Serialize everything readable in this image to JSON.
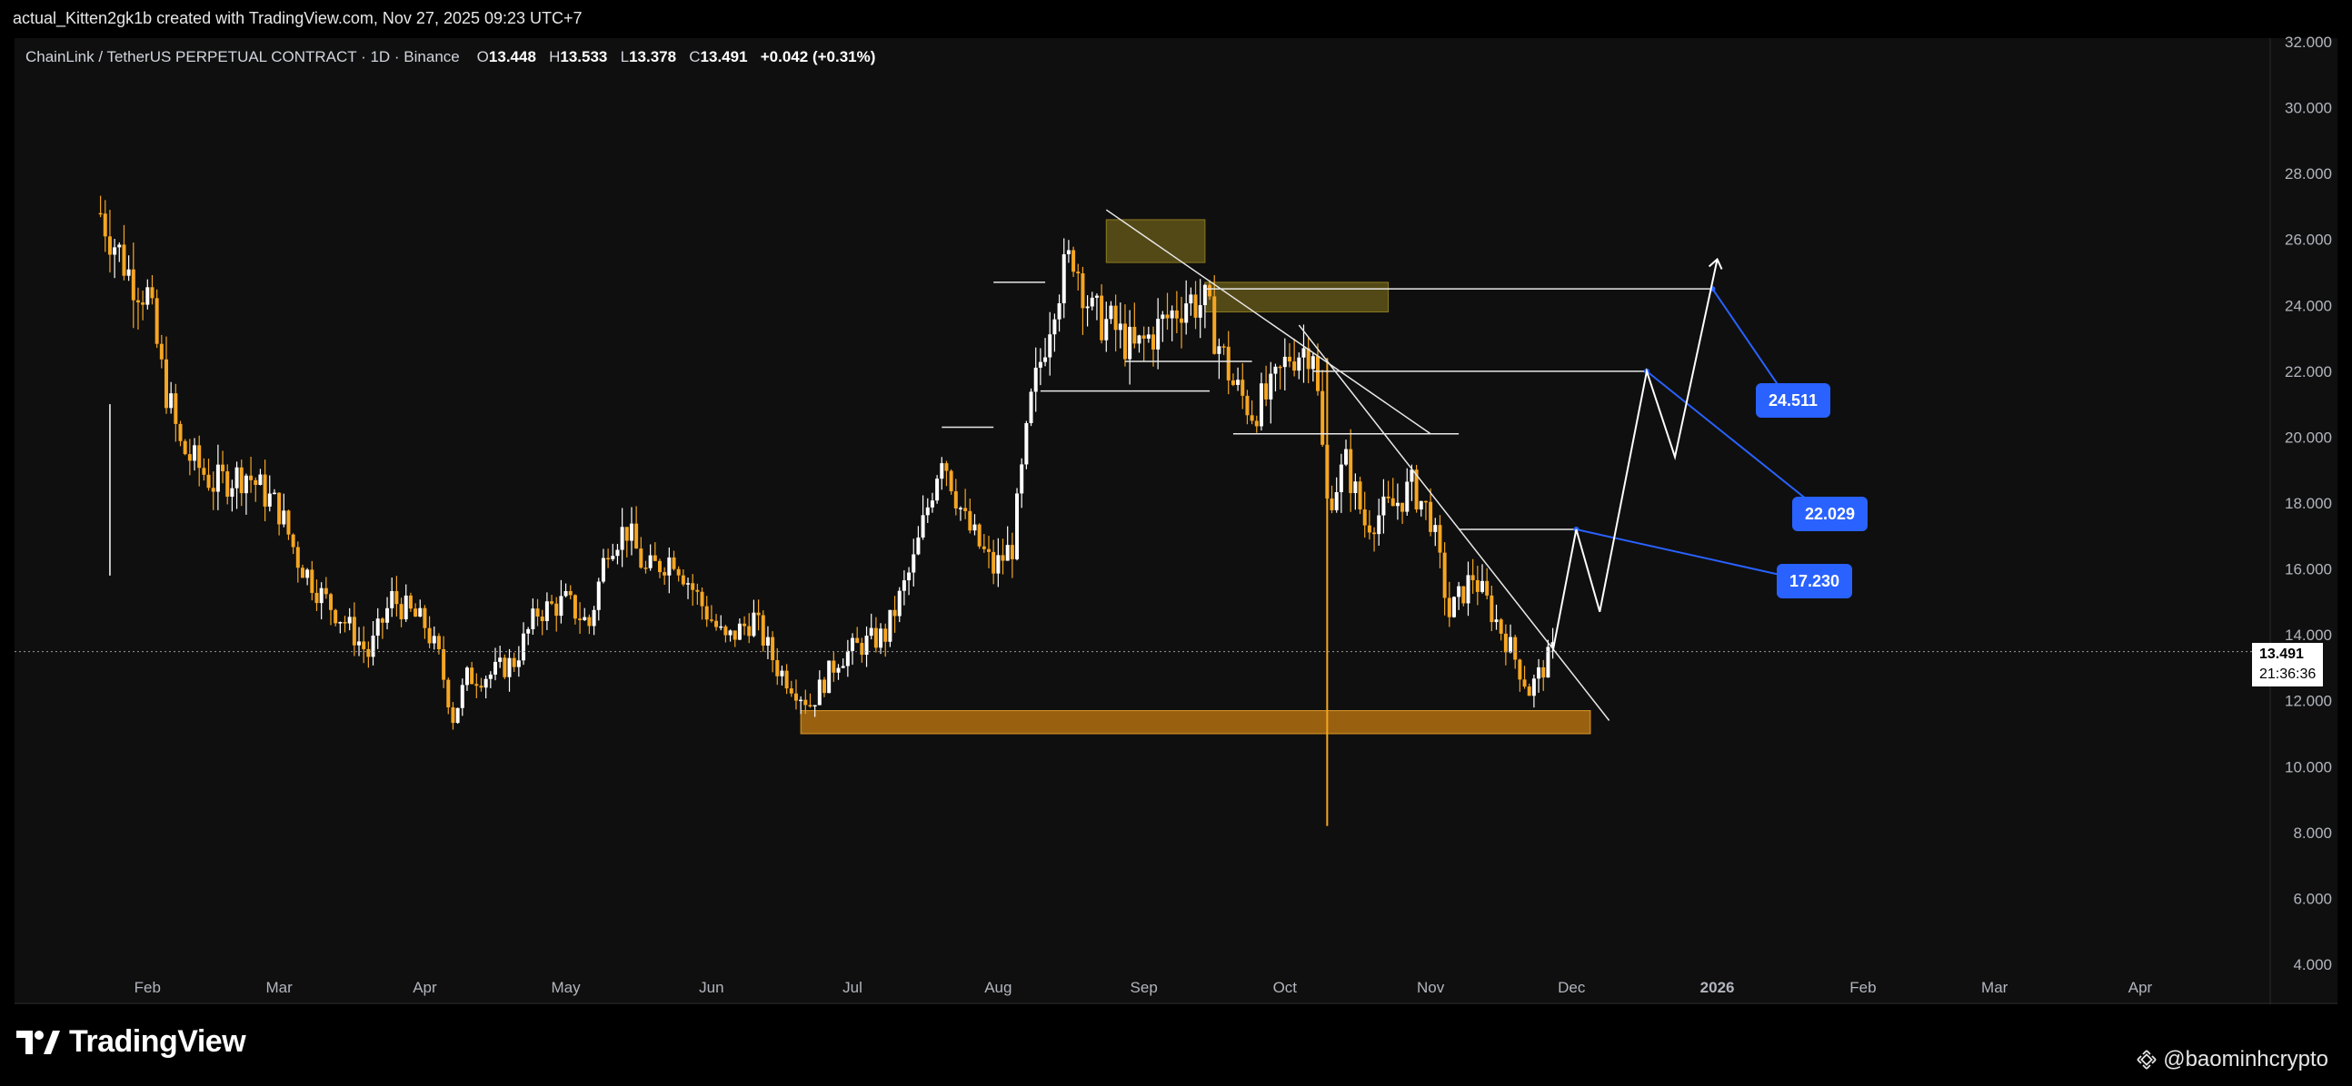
{
  "header": {
    "attribution": "actual_Kitten2gk1b created with TradingView.com, Nov 27, 2025 09:23 UTC+7"
  },
  "legend": {
    "symbol": "ChainLink / TetherUS PERPETUAL CONTRACT · 1D · Binance",
    "open_label": "O",
    "open": "13.448",
    "high_label": "H",
    "high": "13.533",
    "low_label": "L",
    "low": "13.378",
    "close_label": "C",
    "close": "13.491",
    "change": "+0.042 (+0.31%)"
  },
  "price_badge": {
    "price": "13.491",
    "countdown": "21:36:36"
  },
  "targets": [
    {
      "label": "24.511"
    },
    {
      "label": "22.029"
    },
    {
      "label": "17.230"
    }
  ],
  "footer": {
    "logo_text": "TradingView",
    "watermark": "@baominhcrypto"
  },
  "colors": {
    "candle": "#f5a623",
    "candle_alt": "#ffffff",
    "background": "#0f0f0f",
    "accent": "#2962ff",
    "zone_dark": "#5f5418",
    "zone_orange": "#a86a10"
  },
  "chart_data": {
    "type": "candlestick",
    "y_ticks": [
      "32.000",
      "30.000",
      "28.000",
      "26.000",
      "24.000",
      "22.000",
      "20.000",
      "18.000",
      "16.000",
      "14.000",
      "12.000",
      "10.000",
      "8.000",
      "6.000",
      "4.000"
    ],
    "ylim": [
      4,
      32
    ],
    "x_ticks": [
      "Feb",
      "Mar",
      "Apr",
      "May",
      "Jun",
      "Jul",
      "Aug",
      "Sep",
      "Oct",
      "Nov",
      "Dec",
      "2026",
      "Feb",
      "Mar",
      "Apr"
    ],
    "x_tick_dates": [
      "2025-02-01",
      "2025-03-01",
      "2025-04-01",
      "2025-05-01",
      "2025-06-01",
      "2025-07-01",
      "2025-08-01",
      "2025-09-01",
      "2025-10-01",
      "2025-11-01",
      "2025-12-01",
      "2026-01-01",
      "2026-02-01",
      "2026-03-01",
      "2026-04-01"
    ],
    "last_price": 13.491,
    "close_path": [
      [
        "2025-01-22",
        26.8
      ],
      [
        "2025-01-28",
        25.0
      ],
      [
        "2025-02-01",
        24.3
      ],
      [
        "2025-02-04",
        22.0
      ],
      [
        "2025-02-08",
        19.7
      ],
      [
        "2025-02-15",
        18.6
      ],
      [
        "2025-02-22",
        18.9
      ],
      [
        "2025-03-01",
        17.8
      ],
      [
        "2025-03-05",
        16.3
      ],
      [
        "2025-03-10",
        15.2
      ],
      [
        "2025-03-15",
        14.4
      ],
      [
        "2025-03-20",
        13.4
      ],
      [
        "2025-03-25",
        15.1
      ],
      [
        "2025-04-01",
        14.3
      ],
      [
        "2025-04-04",
        13.3
      ],
      [
        "2025-04-07",
        11.5
      ],
      [
        "2025-04-10",
        12.7
      ],
      [
        "2025-04-15",
        12.8
      ],
      [
        "2025-04-20",
        13.2
      ],
      [
        "2025-04-25",
        14.7
      ],
      [
        "2025-05-01",
        15.0
      ],
      [
        "2025-05-06",
        14.3
      ],
      [
        "2025-05-10",
        16.8
      ],
      [
        "2025-05-14",
        17.2
      ],
      [
        "2025-05-18",
        15.9
      ],
      [
        "2025-05-24",
        16.4
      ],
      [
        "2025-05-30",
        14.9
      ],
      [
        "2025-06-04",
        13.8
      ],
      [
        "2025-06-10",
        14.5
      ],
      [
        "2025-06-15",
        13.0
      ],
      [
        "2025-06-22",
        11.9
      ],
      [
        "2025-06-28",
        13.3
      ],
      [
        "2025-07-03",
        13.7
      ],
      [
        "2025-07-08",
        14.0
      ],
      [
        "2025-07-14",
        16.2
      ],
      [
        "2025-07-20",
        19.6
      ],
      [
        "2025-07-25",
        17.4
      ],
      [
        "2025-07-31",
        16.0
      ],
      [
        "2025-08-04",
        16.7
      ],
      [
        "2025-08-08",
        21.0
      ],
      [
        "2025-08-13",
        24.3
      ],
      [
        "2025-08-17",
        25.6
      ],
      [
        "2025-08-21",
        23.7
      ],
      [
        "2025-08-25",
        23.4
      ],
      [
        "2025-08-30",
        22.6
      ],
      [
        "2025-09-04",
        23.3
      ],
      [
        "2025-09-10",
        24.2
      ],
      [
        "2025-09-14",
        24.0
      ],
      [
        "2025-09-20",
        21.6
      ],
      [
        "2025-09-24",
        20.8
      ],
      [
        "2025-09-28",
        21.3
      ],
      [
        "2025-10-02",
        22.5
      ],
      [
        "2025-10-07",
        22.8
      ],
      [
        "2025-10-10",
        18.0
      ],
      [
        "2025-10-14",
        19.2
      ],
      [
        "2025-10-18",
        17.4
      ],
      [
        "2025-10-24",
        17.9
      ],
      [
        "2025-10-28",
        18.5
      ],
      [
        "2025-11-01",
        17.6
      ],
      [
        "2025-11-05",
        14.6
      ],
      [
        "2025-11-10",
        15.8
      ],
      [
        "2025-11-14",
        14.7
      ],
      [
        "2025-11-18",
        13.6
      ],
      [
        "2025-11-22",
        12.3
      ],
      [
        "2025-11-27",
        13.49
      ]
    ],
    "projection_path": [
      [
        "2025-11-27",
        13.5
      ],
      [
        "2025-12-02",
        17.2
      ],
      [
        "2025-12-07",
        14.7
      ],
      [
        "2025-12-17",
        22.0
      ],
      [
        "2025-12-23",
        19.4
      ],
      [
        "2026-01-01",
        25.4
      ]
    ],
    "annotations": [
      {
        "kind": "zone",
        "from": "2025-06-20",
        "to": "2025-12-05",
        "low": 11.0,
        "high": 11.7
      },
      {
        "kind": "zone",
        "from": "2025-08-24",
        "to": "2025-09-14",
        "low": 25.3,
        "high": 26.6
      },
      {
        "kind": "zone",
        "from": "2025-09-14",
        "to": "2025-10-23",
        "low": 23.8,
        "high": 24.7
      },
      {
        "kind": "trendline",
        "from": [
          "2025-08-24",
          26.9
        ],
        "to": [
          "2025-11-01",
          20.1
        ]
      },
      {
        "kind": "trendline",
        "from": [
          "2025-10-04",
          23.4
        ],
        "to": [
          "2025-12-09",
          11.4
        ]
      },
      {
        "kind": "level",
        "from": "2025-07-31",
        "to": "2025-08-11",
        "y": 24.7
      },
      {
        "kind": "level",
        "from": "2025-07-20",
        "to": "2025-07-31",
        "y": 20.3
      },
      {
        "kind": "level",
        "from": "2025-08-10",
        "to": "2025-09-15",
        "y": 21.4
      },
      {
        "kind": "level",
        "from": "2025-08-28",
        "to": "2025-09-24",
        "y": 22.3
      },
      {
        "kind": "level",
        "from": "2025-09-20",
        "to": "2025-11-07",
        "y": 20.1
      },
      {
        "kind": "level",
        "from": "2025-09-14",
        "to": "2025-12-31",
        "y": 24.5
      },
      {
        "kind": "level",
        "from": "2025-10-07",
        "to": "2025-12-17",
        "y": 22.0
      },
      {
        "kind": "level",
        "from": "2025-11-07",
        "to": "2025-12-02",
        "y": 17.2
      },
      {
        "kind": "target_connector",
        "from": [
          "2025-12-31",
          24.5
        ],
        "label": "24.511"
      },
      {
        "kind": "target_connector",
        "from": [
          "2025-12-17",
          22.0
        ],
        "label": "22.029"
      },
      {
        "kind": "target_connector",
        "from": [
          "2025-12-02",
          17.2
        ],
        "label": "17.230"
      }
    ]
  }
}
